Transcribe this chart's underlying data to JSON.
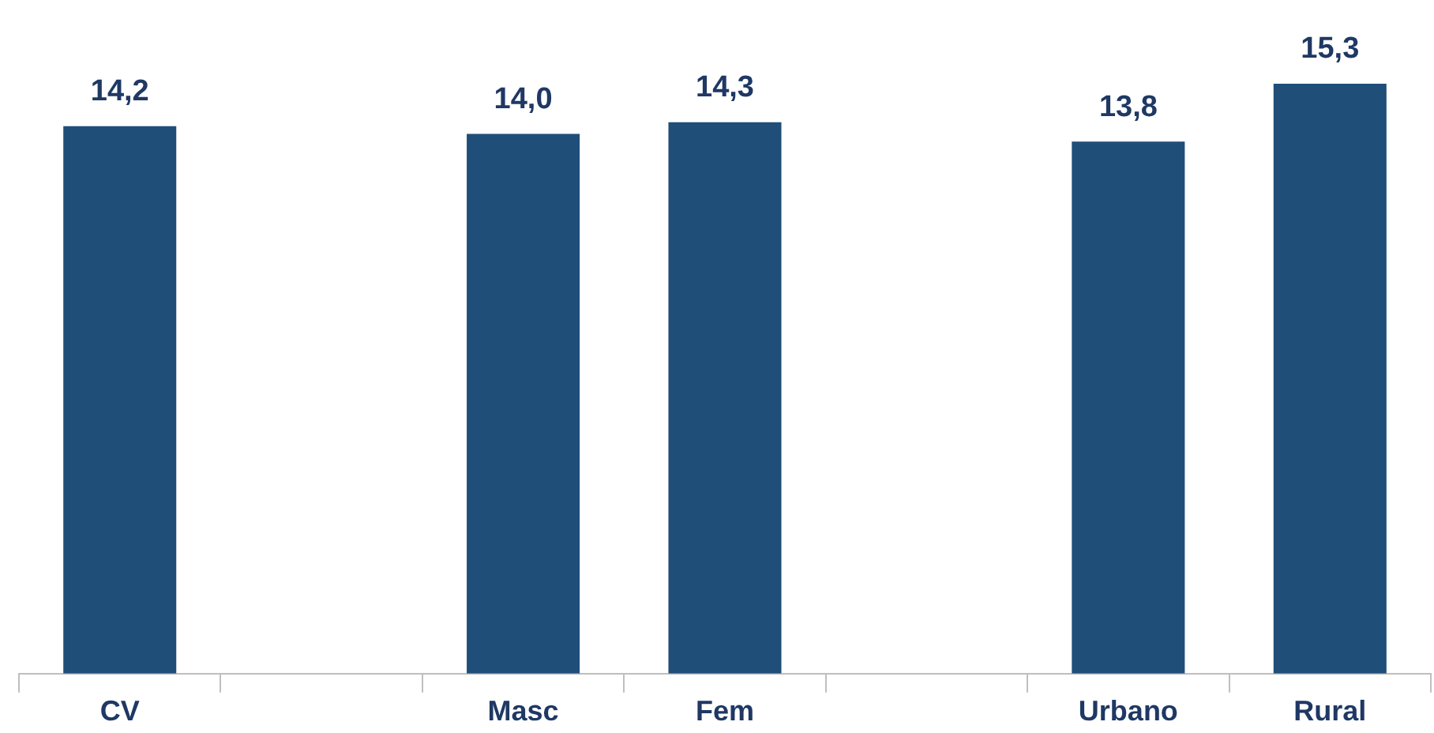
{
  "chart_data": {
    "type": "bar",
    "categories": [
      "CV",
      null,
      "Masc",
      "Fem",
      null,
      "Urbano",
      "Rural"
    ],
    "values": [
      14.2,
      null,
      14.0,
      14.3,
      null,
      13.8,
      15.3
    ],
    "value_labels": [
      "14,2",
      null,
      "14,0",
      "14,3",
      null,
      "13,8",
      "15,3"
    ],
    "color": "#1f4e79"
  }
}
